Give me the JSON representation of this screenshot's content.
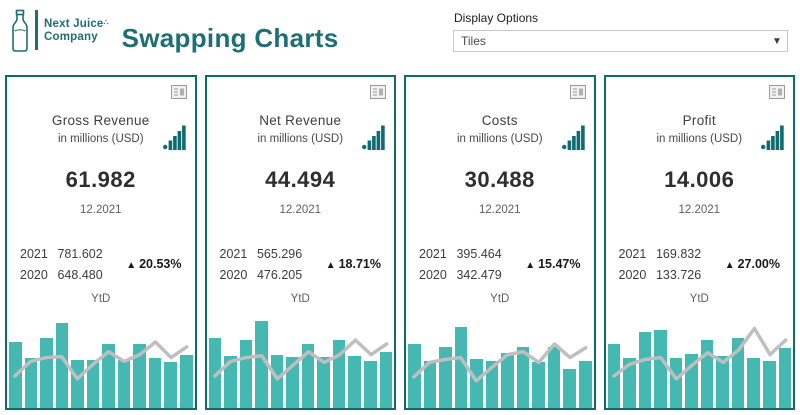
{
  "header": {
    "logo": {
      "icon": "juice-bottle-icon",
      "line1": "Next Juice",
      "line2": "Company",
      "sparkle": "∴"
    },
    "title": "Swapping Charts",
    "display_options": {
      "label": "Display Options",
      "selected_value": "Tiles",
      "icon": "caret-down-icon"
    }
  },
  "tiles": [
    {
      "title": "Gross Revenue",
      "subtitle": "in millions (USD)",
      "value": "61.982",
      "date": "12.2021",
      "rows": [
        {
          "year": "2021",
          "value": "781.602"
        },
        {
          "year": "2020",
          "value": "648.480"
        }
      ],
      "delta_icon": "▲",
      "delta": "20.53%",
      "period_label": "YtD"
    },
    {
      "title": "Net Revenue",
      "subtitle": "in millions (USD)",
      "value": "44.494",
      "date": "12.2021",
      "rows": [
        {
          "year": "2021",
          "value": "565.296"
        },
        {
          "year": "2020",
          "value": "476.205"
        }
      ],
      "delta_icon": "▲",
      "delta": "18.71%",
      "period_label": "YtD"
    },
    {
      "title": "Costs",
      "subtitle": "in millions (USD)",
      "value": "30.488",
      "date": "12.2021",
      "rows": [
        {
          "year": "2021",
          "value": "395.464"
        },
        {
          "year": "2020",
          "value": "342.479"
        }
      ],
      "delta_icon": "▲",
      "delta": "15.47%",
      "period_label": "YtD"
    },
    {
      "title": "Profit",
      "subtitle": "in millions (USD)",
      "value": "14.006",
      "date": "12.2021",
      "rows": [
        {
          "year": "2021",
          "value": "169.832"
        },
        {
          "year": "2020",
          "value": "133.726"
        }
      ],
      "delta_icon": "▲",
      "delta": "27.00%",
      "period_label": "YtD"
    }
  ],
  "chart_data": [
    {
      "type": "bar",
      "title": "Gross Revenue",
      "subtitle": "in millions (USD)",
      "kpi_value": 61.982,
      "as_of": "12.2021",
      "ytd": {
        "2021": 781.602,
        "2020": 648.48
      },
      "yoy_change": "▲ 20.53%",
      "x_axis": "12 unlabeled periods (months YtD)",
      "legend": "off",
      "grid": "off",
      "bars_rel": [
        68,
        52,
        72,
        88,
        50,
        49,
        66,
        50,
        66,
        52,
        47,
        55
      ],
      "line_rel": [
        33,
        48,
        52,
        53,
        30,
        45,
        58,
        48,
        55,
        68,
        52,
        63
      ],
      "note": "bar/line series read as % of mini-chart height; no axis labels shown"
    },
    {
      "type": "bar",
      "title": "Net Revenue",
      "subtitle": "in millions (USD)",
      "kpi_value": 44.494,
      "as_of": "12.2021",
      "ytd": {
        "2021": 565.296,
        "2020": 476.205
      },
      "yoy_change": "▲ 18.71%",
      "x_axis": "12 unlabeled periods (months YtD)",
      "legend": "off",
      "grid": "off",
      "bars_rel": [
        72,
        54,
        70,
        90,
        55,
        53,
        66,
        53,
        70,
        54,
        48,
        58
      ],
      "line_rel": [
        33,
        48,
        52,
        54,
        30,
        44,
        58,
        47,
        55,
        70,
        55,
        66
      ],
      "note": "bar/line series read as % of mini-chart height; no axis labels shown"
    },
    {
      "type": "bar",
      "title": "Costs",
      "subtitle": "in millions (USD)",
      "kpi_value": 30.488,
      "as_of": "12.2021",
      "ytd": {
        "2021": 395.464,
        "2020": 342.479
      },
      "yoy_change": "▲ 15.47%",
      "x_axis": "12 unlabeled periods (months YtD)",
      "legend": "off",
      "grid": "off",
      "bars_rel": [
        66,
        48,
        63,
        84,
        51,
        48,
        57,
        63,
        47,
        63,
        40,
        48
      ],
      "line_rel": [
        32,
        47,
        50,
        52,
        28,
        42,
        55,
        58,
        47,
        66,
        52,
        62
      ],
      "note": "bar/line series read as % of mini-chart height; no axis labels shown"
    },
    {
      "type": "bar",
      "title": "Profit",
      "subtitle": "in millions (USD)",
      "kpi_value": 14.006,
      "as_of": "12.2021",
      "ytd": {
        "2021": 169.832,
        "2020": 133.726
      },
      "yoy_change": "▲ 27.00%",
      "x_axis": "12 unlabeled periods (months YtD)",
      "legend": "off",
      "grid": "off",
      "bars_rel": [
        66,
        52,
        78,
        80,
        52,
        56,
        70,
        54,
        72,
        52,
        48,
        62
      ],
      "line_rel": [
        33,
        45,
        50,
        52,
        30,
        44,
        57,
        47,
        60,
        82,
        55,
        70
      ],
      "note": "bar/line series read as % of mini-chart height; no axis labels shown"
    }
  ],
  "colors": {
    "brand_teal": "#1D6F74",
    "tile_border": "#0D6B68",
    "bar_fill": "#44B8B1",
    "trend_line_gray": "#BFBFBF",
    "text_dark": "#2E2E2E",
    "text_gray": "#5F5F5F"
  }
}
